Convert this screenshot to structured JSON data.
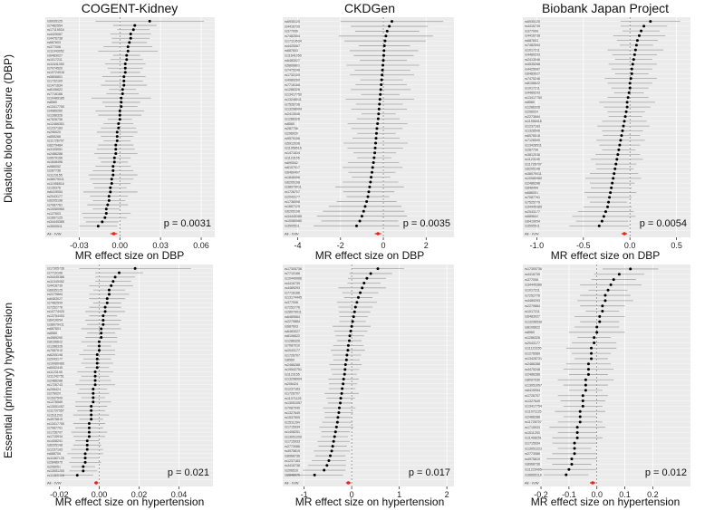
{
  "figure": {
    "col_titles": [
      "COGENT-Kidney",
      "CKDGen",
      "Biobank Japan Project"
    ],
    "row_labels": [
      "Diastolic blood pressure (DBP)",
      "Essential (primary) hypertension"
    ],
    "xlabels": [
      "MR effect size on DBP",
      "MR effect size on hypertension"
    ]
  },
  "colors": {
    "panel_bg": "#ebebeb",
    "grid": "#ffffff",
    "ci": "#a6a6a6",
    "point": "#000000",
    "ivw": "#e3241b",
    "zero": "#666666"
  },
  "chart_data": [
    {
      "type": "scatter",
      "panel": "DBP / COGENT-Kidney",
      "xlim": [
        -0.055,
        0.07
      ],
      "xticks": [
        "-0.03",
        "0.00",
        "0.03",
        "0.06"
      ],
      "xtick_values": [
        -0.03,
        0,
        0.03,
        0.06
      ],
      "p_value": "p = 0.0031",
      "snps": [
        "rs6935125",
        "rs7482554",
        "rs17119534",
        "rs4425087",
        "rs4476738",
        "rs687603",
        "rs377006",
        "rs11043052",
        "rs6483027",
        "rs1017211",
        "rs11641050",
        "rs7074520",
        "rs10724016",
        "rs5806801",
        "rs1732109",
        "rs1471634",
        "rs8106622",
        "rs7716166",
        "rs10489185",
        "rs8560",
        "rs13417750",
        "rs4989260",
        "rs1286326",
        "rs7526736",
        "rs12466351",
        "rs1237183",
        "rs296020",
        "rs855266",
        "rs11726707",
        "rs6279484",
        "rs3105051",
        "rs2486288",
        "rs9579156",
        "rs1848496",
        "rs986052",
        "rs287736",
        "rs1123155",
        "rs38079011",
        "rs11956516",
        "rs135376",
        "rs6419054",
        "rs2043177",
        "rs6205198",
        "rs7087761",
        "rs10080960",
        "rs127603",
        "rs1667125",
        "rs34445385",
        "rs3505511"
      ],
      "beta": [
        0.022,
        0.011,
        0.01,
        0.008,
        0.008,
        0.007,
        0.006,
        0.006,
        0.005,
        0.005,
        0.004,
        0.004,
        0.004,
        0.003,
        0.003,
        0.003,
        0.002,
        0.002,
        0.001,
        0.001,
        0.001,
        0.0,
        0.0,
        0.0,
        -0.001,
        -0.001,
        -0.002,
        -0.002,
        -0.002,
        -0.003,
        -0.003,
        -0.003,
        -0.004,
        -0.004,
        -0.005,
        -0.005,
        -0.005,
        -0.006,
        -0.006,
        -0.007,
        -0.007,
        -0.008,
        -0.008,
        -0.009,
        -0.01,
        -0.01,
        -0.011,
        -0.013,
        -0.016
      ],
      "ci_half": [
        0.04,
        0.016,
        0.012,
        0.015,
        0.014,
        0.013,
        0.018,
        0.022,
        0.01,
        0.012,
        0.015,
        0.013,
        0.011,
        0.016,
        0.014,
        0.017,
        0.01,
        0.012,
        0.022,
        0.014,
        0.012,
        0.018,
        0.016,
        0.009,
        0.011,
        0.013,
        0.015,
        0.012,
        0.01,
        0.013,
        0.014,
        0.016,
        0.012,
        0.01,
        0.013,
        0.015,
        0.018,
        0.016,
        0.014,
        0.012,
        0.02,
        0.014,
        0.012,
        0.015,
        0.01,
        0.018,
        0.016,
        0.012,
        0.014
      ],
      "ivw": {
        "label": "All - IVW",
        "beta": -0.0045,
        "ci_half": 0.0025
      }
    },
    {
      "type": "scatter",
      "panel": "DBP / CKDGen",
      "xlim": [
        -4.7,
        3.3
      ],
      "xticks": [
        "-4",
        "-2",
        "0",
        "2"
      ],
      "xtick_values": [
        -4,
        -2,
        0,
        2
      ],
      "p_value": "p = 0.0035",
      "snps": [
        "rs6935125",
        "rs4416739",
        "rs377006",
        "rs7482554",
        "rs17119534",
        "rs4425087",
        "rs687603",
        "rs11641050",
        "rs6483027",
        "rs5806801",
        "rs7475246",
        "rs1732109",
        "rs4989260",
        "rs7716166",
        "rs1286326",
        "rs13417750",
        "rs13248011",
        "rs7526736",
        "rs13298904",
        "rs2413046",
        "rs1286326",
        "rs8560",
        "rs287736",
        "rs296020",
        "rs9579156",
        "rs5912036",
        "rs11956516",
        "rs1471634",
        "rs1123155",
        "rs690542",
        "rs6107017",
        "rs6460497",
        "rs1848496",
        "rs6205198",
        "rs38079011",
        "rs1726707",
        "rs2043177",
        "rs1736096",
        "rs1667125",
        "rs6205198",
        "rs34445385",
        "rs10080960",
        "rs3505511"
      ],
      "beta": [
        0.4,
        0.28,
        0.18,
        0.12,
        0.08,
        0.05,
        0.03,
        0.02,
        0.0,
        -0.02,
        -0.04,
        -0.06,
        -0.08,
        -0.1,
        -0.12,
        -0.14,
        -0.16,
        -0.18,
        -0.2,
        -0.22,
        -0.24,
        -0.27,
        -0.3,
        -0.32,
        -0.34,
        -0.36,
        -0.38,
        -0.4,
        -0.43,
        -0.46,
        -0.5,
        -0.53,
        -0.57,
        -0.6,
        -0.64,
        -0.68,
        -0.72,
        -0.78,
        -0.85,
        -0.92,
        -1.0,
        -1.1,
        -1.25
      ],
      "ci_half": [
        2.4,
        1.8,
        1.5,
        2.2,
        1.9,
        1.2,
        1.6,
        1.4,
        1.1,
        1.7,
        1.3,
        1.5,
        1.0,
        1.2,
        1.4,
        0.9,
        1.6,
        1.1,
        1.3,
        0.8,
        1.0,
        1.4,
        1.2,
        0.9,
        1.1,
        1.5,
        1.3,
        1.0,
        0.8,
        1.2,
        1.4,
        1.1,
        0.9,
        1.3,
        1.6,
        1.2,
        1.0,
        1.4,
        1.7,
        1.9,
        2.1,
        1.8,
        2.0
      ],
      "ivw": {
        "label": "All - IVW",
        "beta": -0.25,
        "ci_half": 0.15
      }
    },
    {
      "type": "scatter",
      "panel": "DBP / Biobank Japan Project",
      "xlim": [
        -1.15,
        0.65
      ],
      "xticks": [
        "-1.0",
        "-0.5",
        "0.0",
        "0.5"
      ],
      "xtick_values": [
        -1,
        -0.5,
        0,
        0.5
      ],
      "p_value": "p = 0.0054",
      "snps": [
        "rs6935125",
        "rs4416739",
        "rs377006",
        "rs4416738",
        "rs687603",
        "rs7482554",
        "rs1017211",
        "rs4489293",
        "rs2413046",
        "rs4535268",
        "rs4425087",
        "rs6483027",
        "rs7475246",
        "rs8106622",
        "rs1017211",
        "rs4489293",
        "rs13417750",
        "rs8560",
        "rs1286326",
        "rs296020",
        "rs2273684",
        "rs11956516",
        "rs1237183",
        "rs1328506",
        "rs6576518",
        "rs7126509",
        "rs13428511",
        "rs287736",
        "rs3812036",
        "rs1123155",
        "rs11726707",
        "rs6205198",
        "rs38079011",
        "rs10080960",
        "rs2486288",
        "rs848496",
        "rs686001",
        "rs7087761",
        "rs7525779",
        "rs34445385",
        "rs2043177",
        "rs689642",
        "rs6419054",
        "rs3505511"
      ],
      "beta": [
        0.22,
        0.15,
        0.12,
        0.1,
        0.08,
        0.07,
        0.06,
        0.05,
        0.04,
        0.03,
        0.02,
        0.02,
        0.01,
        0.0,
        0.0,
        -0.01,
        -0.02,
        -0.03,
        -0.03,
        -0.04,
        -0.05,
        -0.06,
        -0.07,
        -0.08,
        -0.09,
        -0.1,
        -0.11,
        -0.12,
        -0.13,
        -0.14,
        -0.15,
        -0.16,
        -0.17,
        -0.18,
        -0.19,
        -0.2,
        -0.21,
        -0.22,
        -0.23,
        -0.24,
        -0.26,
        -0.28,
        -0.3,
        -0.33
      ],
      "ci_half": [
        0.32,
        0.25,
        0.2,
        0.28,
        0.22,
        0.18,
        0.3,
        0.24,
        0.2,
        0.26,
        0.22,
        0.18,
        0.28,
        0.24,
        0.2,
        0.16,
        0.22,
        0.3,
        0.25,
        0.2,
        0.18,
        0.24,
        0.28,
        0.22,
        0.2,
        0.26,
        0.22,
        0.18,
        0.24,
        0.28,
        0.22,
        0.2,
        0.26,
        0.3,
        0.24,
        0.22,
        0.28,
        0.24,
        0.2,
        0.26,
        0.3,
        0.34,
        0.28,
        0.32
      ],
      "ivw": {
        "label": "All - IVW",
        "beta": -0.06,
        "ci_half": 0.03
      }
    },
    {
      "type": "scatter",
      "panel": "Hypertension / COGENT-Kidney",
      "xlim": [
        -0.027,
        0.057
      ],
      "xticks": [
        "-0.02",
        "0.00",
        "0.02",
        "0.04"
      ],
      "xtick_values": [
        -0.02,
        0,
        0.02,
        0.04
      ],
      "p_value": "p = 0.021",
      "snps": [
        "rs17305736",
        "rs7710166",
        "rs34445386",
        "rs11043052",
        "rs4416739",
        "rs6935125",
        "rs2279884",
        "rs6483027",
        "rs7482554",
        "rs7252776",
        "rs10774020",
        "rs13754053",
        "rs6419054",
        "rs38079011",
        "rs687603",
        "rs8560",
        "rs4989260",
        "rs8106622",
        "rs1286326",
        "rs7087010",
        "rs6205198",
        "rs2043177",
        "rs10080960",
        "rs6052445",
        "rs1123155",
        "rs11242751",
        "rs2486288",
        "rs1726743",
        "rs206424",
        "rs276020",
        "rs1537509",
        "rs1276589",
        "rs13051057",
        "rs11707557",
        "rs1511293",
        "rs4975819",
        "rs13417750",
        "rs7087761",
        "rs1726707",
        "rs1715934",
        "rs1408251",
        "rs6205198",
        "rs1237183",
        "rs688706",
        "rs11667125",
        "rs2848970",
        "rs206051",
        "rs13051200",
        "rs11869316"
      ],
      "beta": [
        0.018,
        0.01,
        0.008,
        0.007,
        0.006,
        0.005,
        0.005,
        0.004,
        0.004,
        0.003,
        0.003,
        0.002,
        0.002,
        0.002,
        0.001,
        0.001,
        0.001,
        0.0,
        0.0,
        0.0,
        -0.001,
        -0.001,
        -0.001,
        -0.001,
        -0.002,
        -0.002,
        -0.002,
        -0.002,
        -0.003,
        -0.003,
        -0.003,
        -0.003,
        -0.004,
        -0.004,
        -0.004,
        -0.004,
        -0.005,
        -0.005,
        -0.005,
        -0.005,
        -0.006,
        -0.006,
        -0.006,
        -0.007,
        -0.007,
        -0.007,
        -0.008,
        -0.008,
        -0.011
      ],
      "ci_half": [
        0.028,
        0.012,
        0.01,
        0.009,
        0.011,
        0.008,
        0.01,
        0.009,
        0.007,
        0.008,
        0.01,
        0.007,
        0.009,
        0.008,
        0.01,
        0.007,
        0.008,
        0.009,
        0.006,
        0.008,
        0.009,
        0.007,
        0.008,
        0.006,
        0.009,
        0.007,
        0.008,
        0.01,
        0.007,
        0.008,
        0.006,
        0.009,
        0.008,
        0.007,
        0.009,
        0.006,
        0.008,
        0.007,
        0.009,
        0.008,
        0.006,
        0.007,
        0.008,
        0.009,
        0.007,
        0.008,
        0.006,
        0.007,
        0.008
      ],
      "ivw": {
        "label": "All - IVW",
        "beta": -0.0015,
        "ci_half": 0.001
      }
    },
    {
      "type": "scatter",
      "panel": "Hypertension / CKDGen",
      "xlim": [
        -1.45,
        2.15
      ],
      "xticks": [
        "-1",
        "0",
        "1",
        "2"
      ],
      "xtick_values": [
        -1,
        0,
        1,
        2
      ],
      "p_value": "p = 0.017",
      "snps": [
        "rs17305736",
        "rs7710166",
        "rs10449066",
        "rs4416739",
        "rs4489293",
        "rs7716166",
        "rs13174445",
        "rs377006",
        "rs7252776",
        "rs28079011",
        "rs6489564",
        "rs2279884",
        "rs687603",
        "rs6483027",
        "rs8106622",
        "rs1286326",
        "rs7087010",
        "rs2043177",
        "rs1726707",
        "rs8560",
        "rs2486288",
        "rs19542751",
        "rs1123155",
        "rs13298904",
        "rs206424",
        "rs1237183",
        "rs1726707",
        "rs11071125",
        "rs13051057",
        "rs7087040",
        "rs1327649",
        "rs1537509",
        "rs1511294",
        "rs1715934",
        "rs1408251",
        "rs13051200",
        "rs1715933",
        "rs2773086",
        "rs4975819",
        "rs8968736",
        "rs1237183",
        "rs4416738",
        "rs206510",
        "rs2848970"
      ],
      "beta": [
        0.55,
        0.4,
        0.32,
        0.26,
        0.22,
        0.18,
        0.14,
        0.11,
        0.08,
        0.06,
        0.04,
        0.02,
        0.0,
        -0.02,
        -0.04,
        -0.05,
        -0.07,
        -0.08,
        -0.1,
        -0.11,
        -0.13,
        -0.14,
        -0.15,
        -0.17,
        -0.18,
        -0.2,
        -0.21,
        -0.23,
        -0.24,
        -0.26,
        -0.27,
        -0.29,
        -0.3,
        -0.32,
        -0.34,
        -0.36,
        -0.38,
        -0.4,
        -0.42,
        -0.45,
        -0.48,
        -0.52,
        -0.58,
        -0.78
      ],
      "ci_half": [
        0.55,
        0.45,
        0.4,
        0.35,
        0.5,
        0.38,
        0.3,
        0.42,
        0.36,
        0.33,
        0.3,
        0.28,
        0.4,
        0.35,
        0.3,
        0.26,
        0.32,
        0.36,
        0.3,
        0.28,
        0.34,
        0.3,
        0.26,
        0.32,
        0.3,
        0.28,
        0.36,
        0.3,
        0.26,
        0.34,
        0.3,
        0.28,
        0.32,
        0.36,
        0.3,
        0.28,
        0.34,
        0.3,
        0.38,
        0.32,
        0.36,
        0.4,
        0.45,
        0.6
      ],
      "ivw": {
        "label": "All - IVW",
        "beta": -0.07,
        "ci_half": 0.05
      }
    },
    {
      "type": "scatter",
      "panel": "Hypertension / Biobank Japan Project",
      "xlim": [
        -0.265,
        0.335
      ],
      "xticks": [
        "-0.2",
        "-0.1",
        "0.0",
        "0.1",
        "0.2"
      ],
      "xtick_values": [
        -0.2,
        -0.1,
        0,
        0.1,
        0.2
      ],
      "p_value": "p = 0.012",
      "snps": [
        "rs17305736",
        "rs4416739",
        "rs377006",
        "rs34445386",
        "rs1017211",
        "rs7252776",
        "rs4489293",
        "rs2279884",
        "rs1017211",
        "rs6483027",
        "rs13296538",
        "rs8106622",
        "rs8560",
        "rs1286326",
        "rs2043177",
        "rs11123155",
        "rs1276589",
        "rs13428731",
        "rs2486288",
        "rs4475248",
        "rs2486288",
        "rs8097030",
        "rs13051057",
        "rs6419054",
        "rs1726707",
        "rs1327649",
        "rs13417754",
        "rs11071125",
        "rs2486288",
        "rs11726707",
        "rs1715933",
        "rs1511293",
        "rs11408251",
        "rs1715934",
        "rs13051223",
        "rs2773086",
        "rs4975819",
        "rs8968736",
        "rs11229495",
        "rs36665118"
      ],
      "beta": [
        0.12,
        0.08,
        0.06,
        0.05,
        0.04,
        0.03,
        0.03,
        0.02,
        0.02,
        0.01,
        0.01,
        0.0,
        0.0,
        -0.01,
        -0.01,
        -0.02,
        -0.02,
        -0.02,
        -0.03,
        -0.03,
        -0.03,
        -0.04,
        -0.04,
        -0.04,
        -0.05,
        -0.05,
        -0.05,
        -0.06,
        -0.06,
        -0.06,
        -0.07,
        -0.07,
        -0.07,
        -0.08,
        -0.08,
        -0.08,
        -0.09,
        -0.09,
        -0.1,
        -0.11
      ],
      "ci_half": [
        0.1,
        0.09,
        0.08,
        0.11,
        0.07,
        0.09,
        0.1,
        0.08,
        0.06,
        0.09,
        0.07,
        0.08,
        0.1,
        0.06,
        0.08,
        0.09,
        0.07,
        0.06,
        0.08,
        0.09,
        0.07,
        0.1,
        0.08,
        0.06,
        0.09,
        0.08,
        0.07,
        0.09,
        0.06,
        0.08,
        0.1,
        0.07,
        0.09,
        0.08,
        0.06,
        0.08,
        0.09,
        0.07,
        0.1,
        0.08
      ],
      "ivw": {
        "label": "All - IVW",
        "beta": -0.015,
        "ci_half": 0.01
      }
    }
  ]
}
